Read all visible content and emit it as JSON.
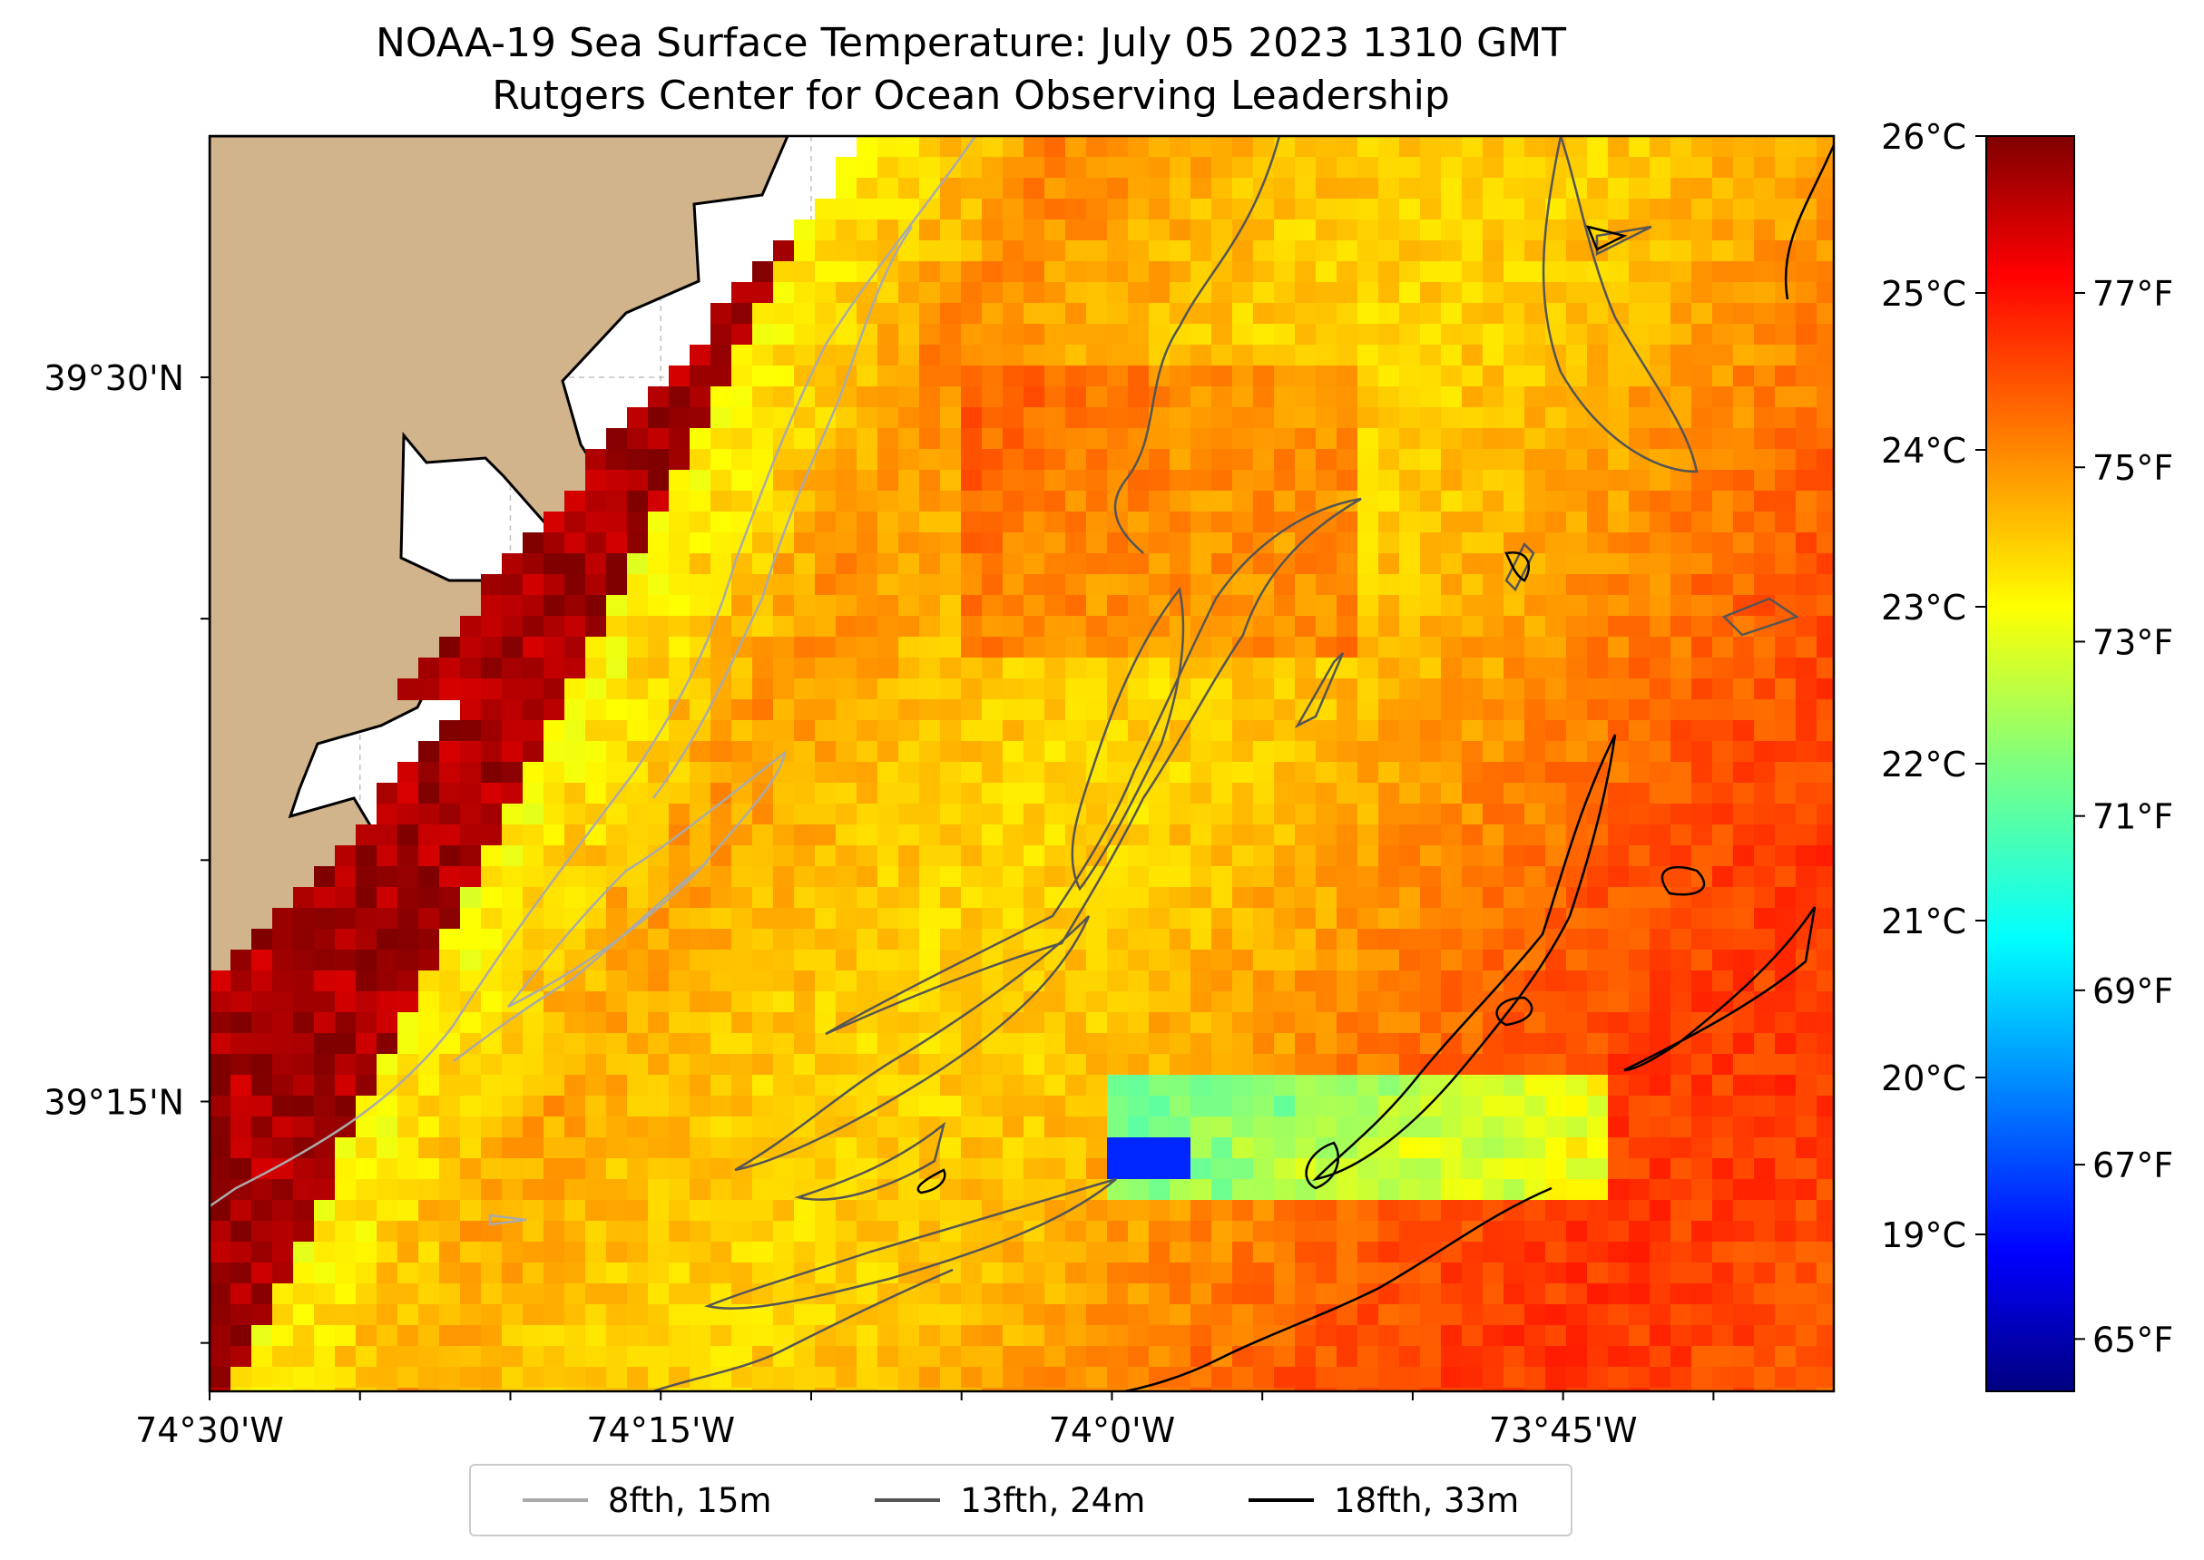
{
  "title": {
    "line1": "NOAA-19 Sea Surface Temperature: July 05 2023 1310 GMT",
    "line2": "Rutgers Center for Ocean Observing Leadership"
  },
  "map": {
    "lon_range": [
      -74.5,
      -73.6
    ],
    "lat_range": [
      39.15,
      39.5833
    ],
    "lon_ticks": [
      {
        "value": -74.5,
        "label": "74°30'W"
      },
      {
        "value": -74.25,
        "label": "74°15'W"
      },
      {
        "value": -74.0,
        "label": "74°0'W"
      },
      {
        "value": -73.75,
        "label": "73°45'W"
      }
    ],
    "lat_ticks": [
      {
        "value": 39.5,
        "label": "39°30'N"
      },
      {
        "value": 39.25,
        "label": "39°15'N"
      }
    ],
    "land_color": "#d2b48c",
    "gridlines": "dashed"
  },
  "colorbar": {
    "min_c": 18,
    "max_c": 26,
    "celsius_ticks": [
      {
        "value": 26,
        "label": "26°C"
      },
      {
        "value": 25,
        "label": "25°C"
      },
      {
        "value": 24,
        "label": "24°C"
      },
      {
        "value": 23,
        "label": "23°C"
      },
      {
        "value": 22,
        "label": "22°C"
      },
      {
        "value": 21,
        "label": "21°C"
      },
      {
        "value": 20,
        "label": "20°C"
      },
      {
        "value": 19,
        "label": "19°C"
      }
    ],
    "fahrenheit_ticks": [
      {
        "value": 77,
        "label": "77°F"
      },
      {
        "value": 75,
        "label": "75°F"
      },
      {
        "value": 73,
        "label": "73°F"
      },
      {
        "value": 71,
        "label": "71°F"
      },
      {
        "value": 69,
        "label": "69°F"
      },
      {
        "value": 67,
        "label": "67°F"
      },
      {
        "value": 65,
        "label": "65°F"
      }
    ],
    "colormap": "jet"
  },
  "legend": {
    "items": [
      {
        "label": "8fth, 15m",
        "color": "#aaaaaa"
      },
      {
        "label": "13fth, 24m",
        "color": "#555555"
      },
      {
        "label": "18fth, 33m",
        "color": "#000000"
      }
    ]
  }
}
